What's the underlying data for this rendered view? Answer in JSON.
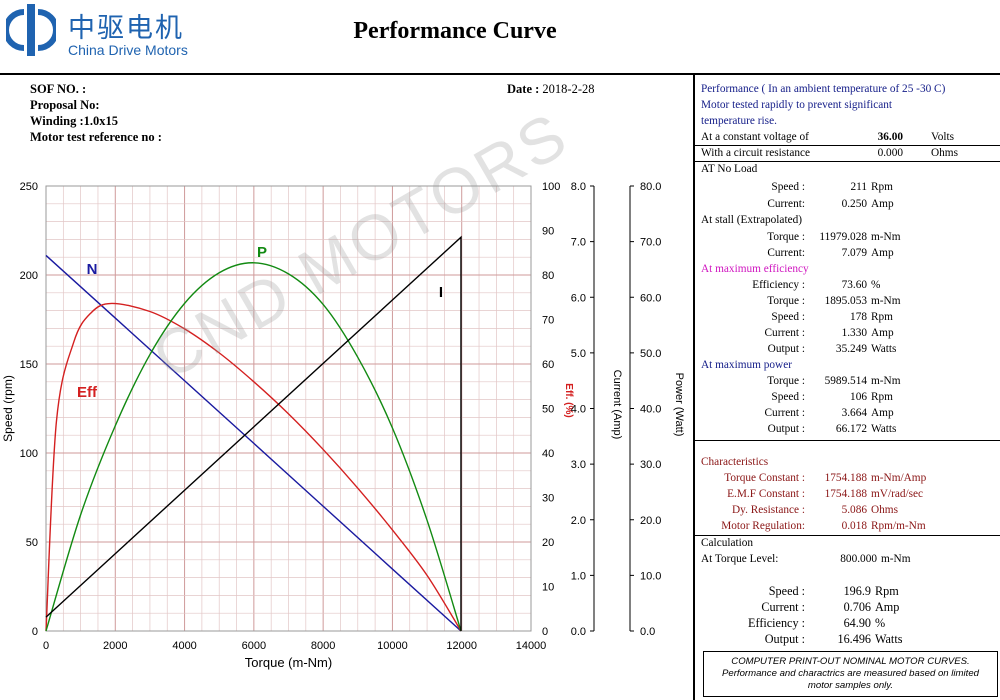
{
  "header": {
    "logo_cn": "中驱电机",
    "logo_en": "China Drive Motors",
    "title": "Performance Curve"
  },
  "meta": {
    "sof_label": "SOF NO. :",
    "proposal_label": "Proposal No:",
    "winding_label": "Winding :",
    "winding_value": "1.0x15",
    "motor_test_label": "Motor test reference no :",
    "date_label": "Date :",
    "date_value": "2018-2-28"
  },
  "conditions": {
    "line1": "Performance ( In an ambient temperature of 25 -30 C)",
    "line2": "Motor tested rapidly to prevent significant",
    "line3": "temperature rise.",
    "voltage_label": "At  a  constant  voltage of",
    "voltage_value": "36.00",
    "voltage_unit": "Volts",
    "resistance_label": "With a circuit resistance",
    "resistance_value": "0.000",
    "resistance_unit": "Ohms"
  },
  "no_load": {
    "heading": "AT No Load",
    "rows": [
      {
        "label": "Speed :",
        "value": "211",
        "unit": "Rpm"
      },
      {
        "label": "Current:",
        "value": "0.250",
        "unit": "Amp"
      }
    ]
  },
  "stall": {
    "heading": "At stall (Extrapolated)",
    "rows": [
      {
        "label": "Torque :",
        "value": "11979.028",
        "unit": "m-Nm"
      },
      {
        "label": "Current:",
        "value": "7.079",
        "unit": "Amp"
      }
    ]
  },
  "max_eff": {
    "heading": "At maximum efficiency",
    "rows": [
      {
        "label": "Efficiency :",
        "value": "73.60",
        "unit": "%"
      },
      {
        "label": "Torque :",
        "value": "1895.053",
        "unit": "m-Nm"
      },
      {
        "label": "Speed :",
        "value": "178",
        "unit": "Rpm"
      },
      {
        "label": "Current :",
        "value": "1.330",
        "unit": "Amp"
      },
      {
        "label": "Output :",
        "value": "35.249",
        "unit": "Watts"
      }
    ]
  },
  "max_power": {
    "heading": "At maximum power",
    "rows": [
      {
        "label": "Torque :",
        "value": "5989.514",
        "unit": "m-Nm"
      },
      {
        "label": "Speed :",
        "value": "106",
        "unit": "Rpm"
      },
      {
        "label": "Current :",
        "value": "3.664",
        "unit": "Amp"
      },
      {
        "label": "Output :",
        "value": "66.172",
        "unit": "Watts"
      }
    ]
  },
  "characteristics": {
    "heading": "Characteristics",
    "rows": [
      {
        "label": "Torque Constant :",
        "value": "1754.188",
        "unit": "m-Nm/Amp"
      },
      {
        "label": "E.M.F Constant :",
        "value": "1754.188",
        "unit": "mV/rad/sec"
      },
      {
        "label": "Dy. Resistance :",
        "value": "5.086",
        "unit": "Ohms"
      },
      {
        "label": "Motor Regulation:",
        "value": "0.018",
        "unit": "Rpm/m-Nm"
      }
    ]
  },
  "calculation": {
    "heading": "Calculation",
    "torque_label": "At Torque Level:",
    "torque_value": "800.000",
    "torque_unit": "m-Nm",
    "rows": [
      {
        "label": "Speed :",
        "value": "196.9",
        "unit": "Rpm"
      },
      {
        "label": "Current :",
        "value": "0.706",
        "unit": "Amp"
      },
      {
        "label": "Efficiency :",
        "value": "64.90",
        "unit": "%"
      },
      {
        "label": "Output :",
        "value": "16.496",
        "unit": "Watts"
      }
    ]
  },
  "footnote": {
    "line1": "COMPUTER PRINT-OUT NOMINAL MOTOR CURVES.",
    "line2": "Performance and charactrics are measured based on limited",
    "line3": "motor samples only."
  },
  "watermark": "CND MOTORS",
  "colors": {
    "speed": "#1a1aa0",
    "efficiency": "#d42020",
    "power": "#128a12",
    "current": "#000000",
    "grid_minor": "#e2c6c6",
    "grid_major": "#cf9a9a",
    "brand": "#1f63b0"
  },
  "chart_data": {
    "type": "line",
    "xlabel": "Torque (m-Nm)",
    "xlim": [
      0,
      14000
    ],
    "xticks": [
      0,
      2000,
      4000,
      6000,
      8000,
      10000,
      12000,
      14000
    ],
    "axes": {
      "speed": {
        "label": "Speed (rpm)",
        "lim": [
          0,
          250
        ],
        "ticks": [
          0,
          50,
          100,
          150,
          200,
          250
        ]
      },
      "efficiency": {
        "label": "Eff. (%)",
        "lim": [
          0,
          100
        ],
        "ticks": [
          0,
          10,
          20,
          30,
          40,
          50,
          60,
          70,
          80,
          90,
          100
        ]
      },
      "current": {
        "label": "Current (Amp)",
        "lim": [
          0,
          8
        ],
        "ticks": [
          "0.0",
          "1.0",
          "2.0",
          "3.0",
          "4.0",
          "5.0",
          "6.0",
          "7.0",
          "8.0"
        ]
      },
      "power": {
        "label": "Power (Watt)",
        "lim": [
          0,
          80
        ],
        "ticks": [
          "0.0",
          "10.0",
          "20.0",
          "30.0",
          "40.0",
          "50.0",
          "60.0",
          "70.0",
          "80.0"
        ]
      }
    },
    "series": [
      {
        "name": "N",
        "axis": "speed",
        "label": "N",
        "x": [
          0,
          2000,
          4000,
          6000,
          8000,
          10000,
          11979
        ],
        "y": [
          211,
          175.8,
          140.6,
          105.4,
          70.1,
          34.8,
          0
        ]
      },
      {
        "name": "Eff",
        "axis": "efficiency",
        "label": "Eff",
        "x": [
          0,
          300,
          800,
          1300,
          1895,
          3000,
          4000,
          5000,
          6000,
          7000,
          8000,
          9000,
          10000,
          11000,
          11979
        ],
        "y": [
          0,
          47,
          64.9,
          71.5,
          73.6,
          71.8,
          67.9,
          62.5,
          56,
          48.8,
          40.8,
          32.1,
          22.7,
          12.5,
          0
        ]
      },
      {
        "name": "P",
        "axis": "power",
        "label": "P",
        "x": [
          0,
          1000,
          2000,
          3000,
          4000,
          5000,
          5989.5,
          7000,
          8000,
          9000,
          10000,
          11000,
          11979
        ],
        "y": [
          0,
          20.9,
          36.9,
          49.7,
          58.9,
          64.4,
          66.2,
          64.2,
          58.7,
          49.2,
          36.5,
          19.9,
          0
        ]
      },
      {
        "name": "I",
        "axis": "current",
        "label": "I",
        "x": [
          0,
          11979,
          11979
        ],
        "y": [
          0.25,
          7.079,
          0
        ]
      }
    ]
  }
}
